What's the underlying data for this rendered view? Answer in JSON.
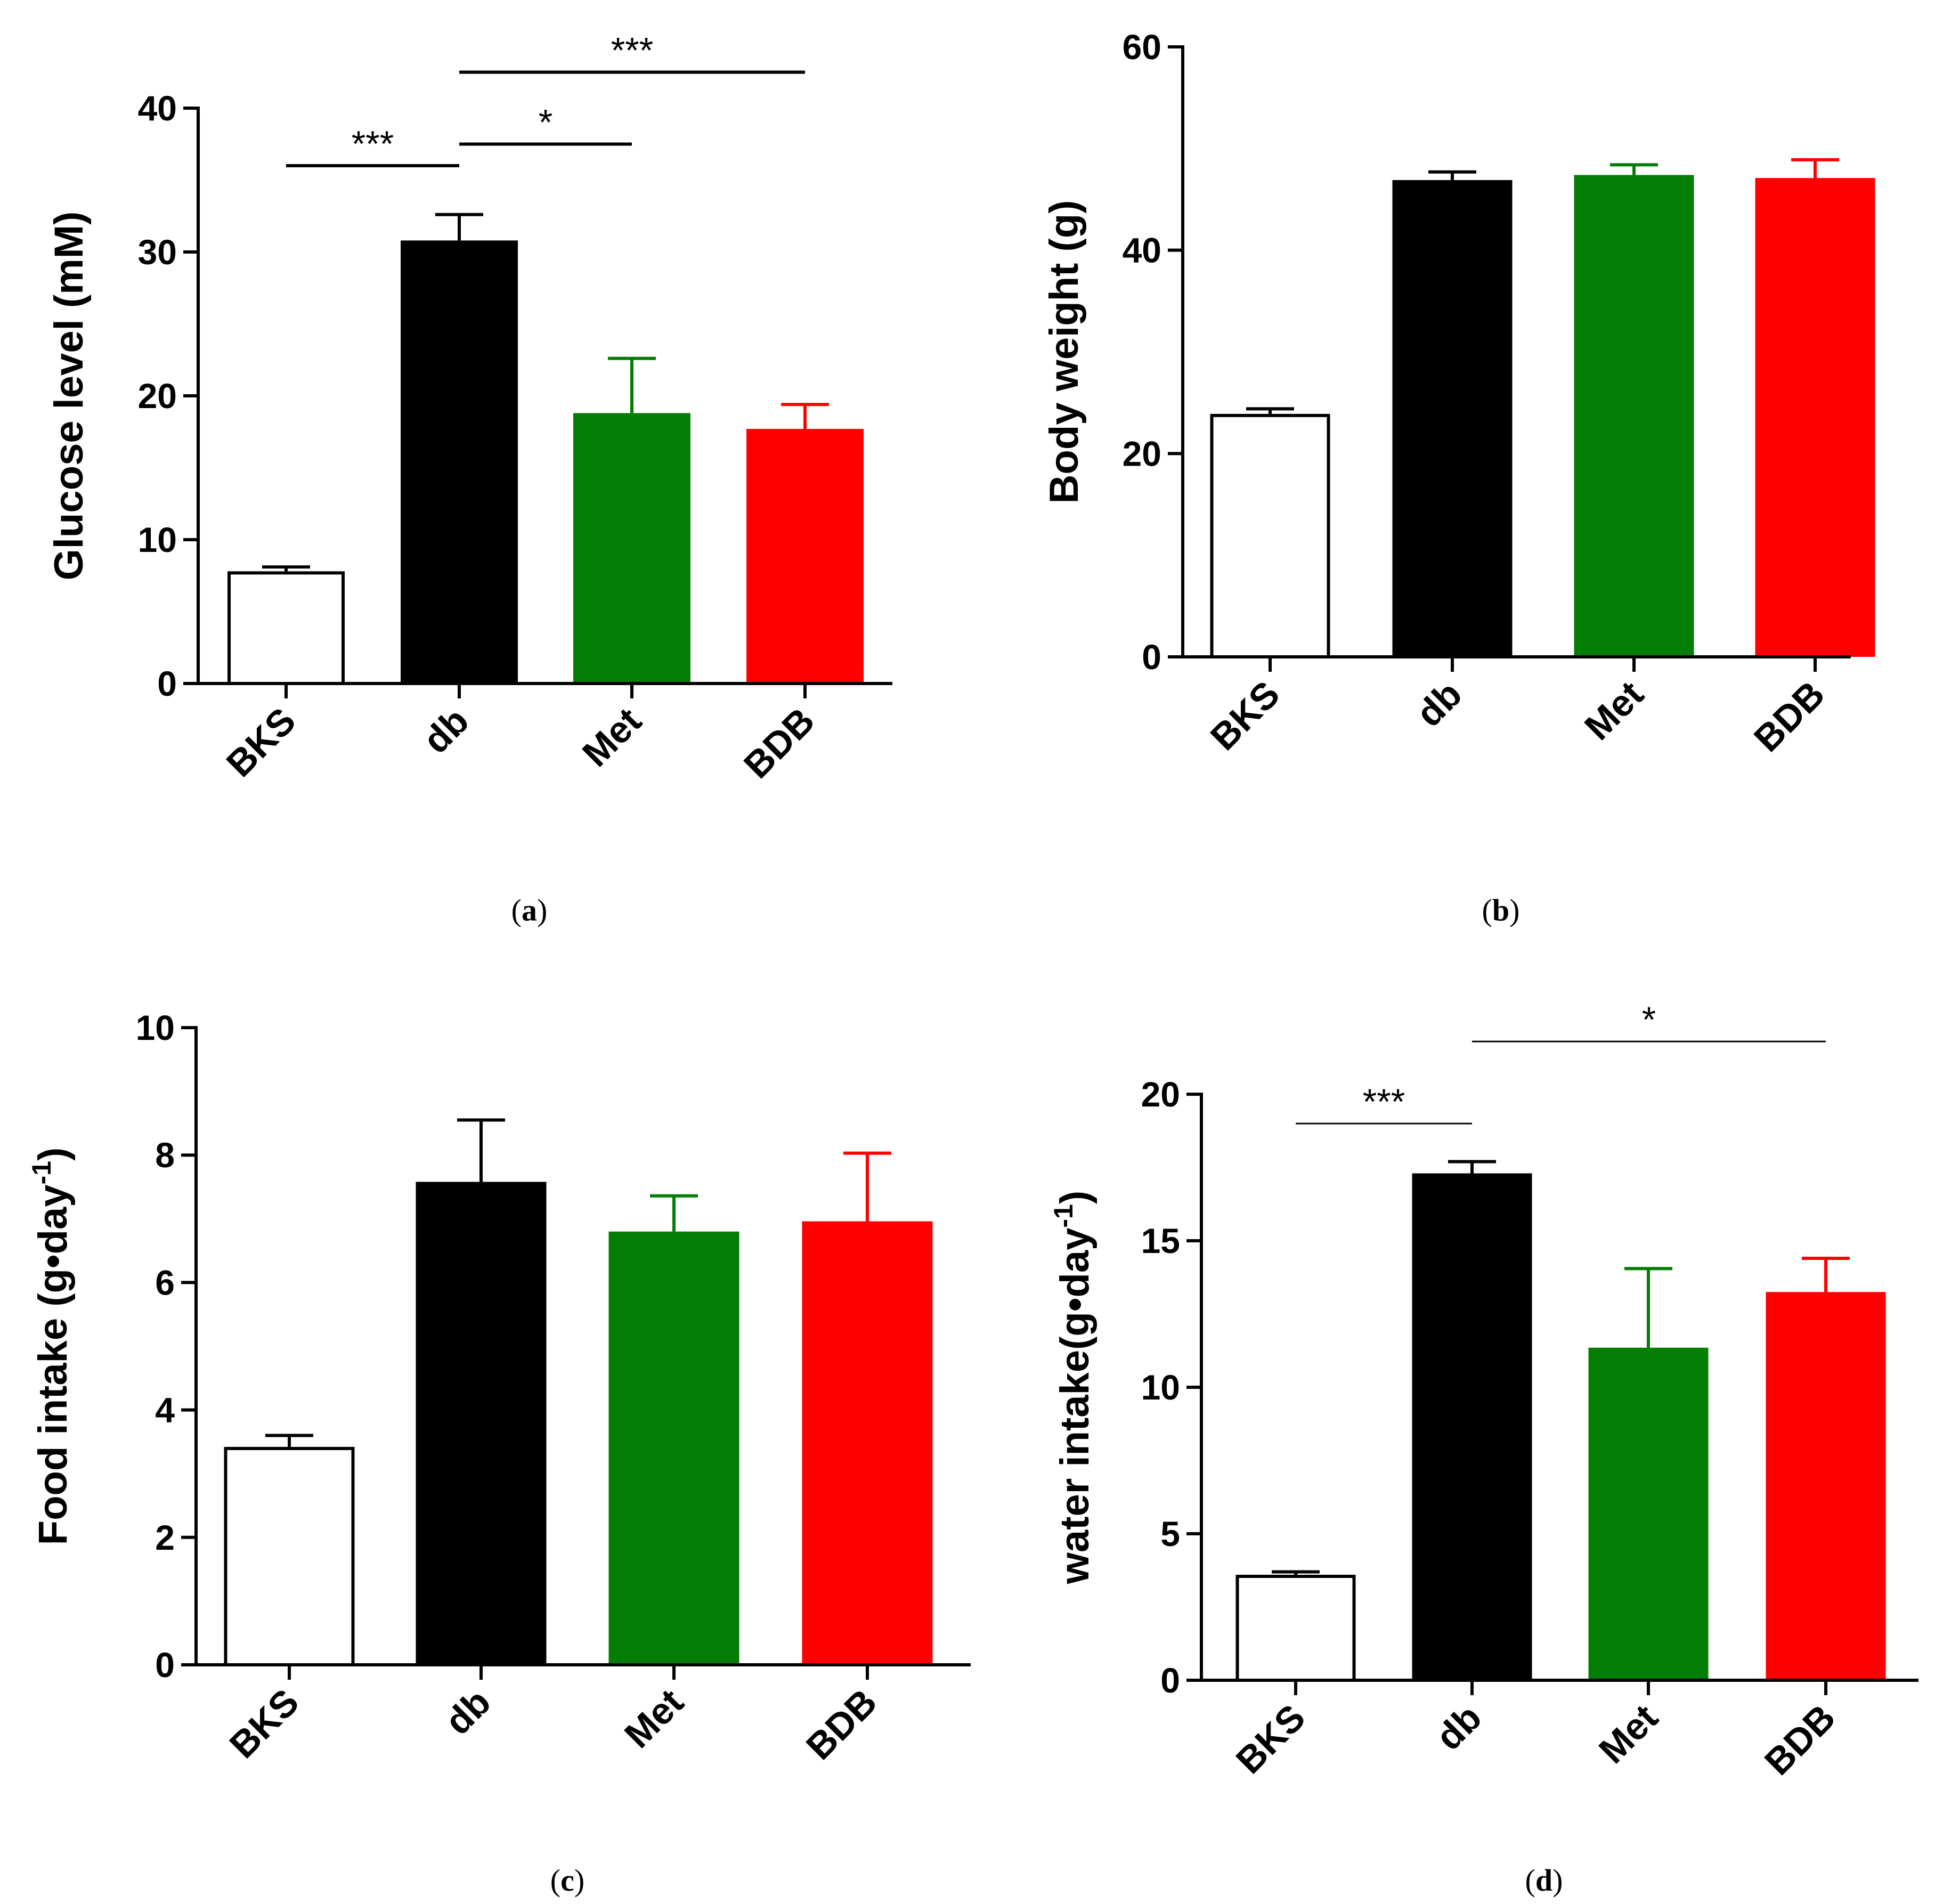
{
  "chart_data": [
    {
      "panel": "a",
      "type": "bar",
      "categories": [
        "BKS",
        "db",
        "Met",
        "BDB"
      ],
      "values": [
        7.8,
        30.8,
        18.8,
        17.7
      ],
      "errors": [
        0.3,
        1.8,
        3.8,
        1.7
      ],
      "colors": [
        "#ffffff",
        "#000000",
        "#047d04",
        "#ff0000"
      ],
      "ylabel": "Glucose level (mM)",
      "ylim": [
        0,
        40
      ],
      "yticks": [
        0,
        10,
        20,
        30,
        40
      ],
      "significance": [
        {
          "from": 0,
          "to": 1,
          "y": 36,
          "label": "***"
        },
        {
          "from": 1,
          "to": 2,
          "y": 37.5,
          "label": "*"
        },
        {
          "from": 1,
          "to": 3,
          "y": 42.5,
          "label": "***"
        }
      ],
      "caption": "(a)"
    },
    {
      "panel": "b",
      "type": "bar",
      "categories": [
        "BKS",
        "db",
        "Met",
        "BDB"
      ],
      "values": [
        23.9,
        46.9,
        47.4,
        47.1
      ],
      "errors": [
        0.5,
        0.8,
        1.0,
        1.8
      ],
      "colors": [
        "#ffffff",
        "#000000",
        "#047d04",
        "#ff0000"
      ],
      "ylabel": "Body weight (g)",
      "ylim": [
        0,
        60
      ],
      "yticks": [
        0,
        20,
        40,
        60
      ],
      "significance": [],
      "caption": "(b)"
    },
    {
      "panel": "c",
      "type": "bar",
      "categories": [
        "BKS",
        "db",
        "Met",
        "BDB"
      ],
      "values": [
        3.42,
        7.58,
        6.8,
        6.96
      ],
      "errors": [
        0.18,
        0.97,
        0.56,
        1.07
      ],
      "colors": [
        "#ffffff",
        "#000000",
        "#047d04",
        "#ff0000"
      ],
      "ylabel": "Food intake (g•day",
      "ylabel_sup": "-1",
      "ylabel_end": ")",
      "ylim": [
        0,
        10
      ],
      "yticks": [
        0,
        2,
        4,
        6,
        8,
        10
      ],
      "significance": [],
      "caption": "(c)"
    },
    {
      "panel": "d",
      "type": "bar",
      "categories": [
        "BKS",
        "db",
        "Met",
        "BDB"
      ],
      "values": [
        3.6,
        17.3,
        11.35,
        13.25
      ],
      "errors": [
        0.1,
        0.4,
        2.7,
        1.15
      ],
      "colors": [
        "#ffffff",
        "#000000",
        "#047d04",
        "#ff0000"
      ],
      "ylabel": "water intake(g•day",
      "ylabel_sup": "-1",
      "ylabel_end": ")",
      "ylim": [
        0,
        20
      ],
      "yticks": [
        0,
        5,
        10,
        15,
        20
      ],
      "significance": [
        {
          "from": 0,
          "to": 1,
          "y": 19,
          "label": "***"
        },
        {
          "from": 1,
          "to": 3,
          "y": 21.8,
          "label": "*"
        }
      ],
      "caption": "(d)"
    }
  ]
}
